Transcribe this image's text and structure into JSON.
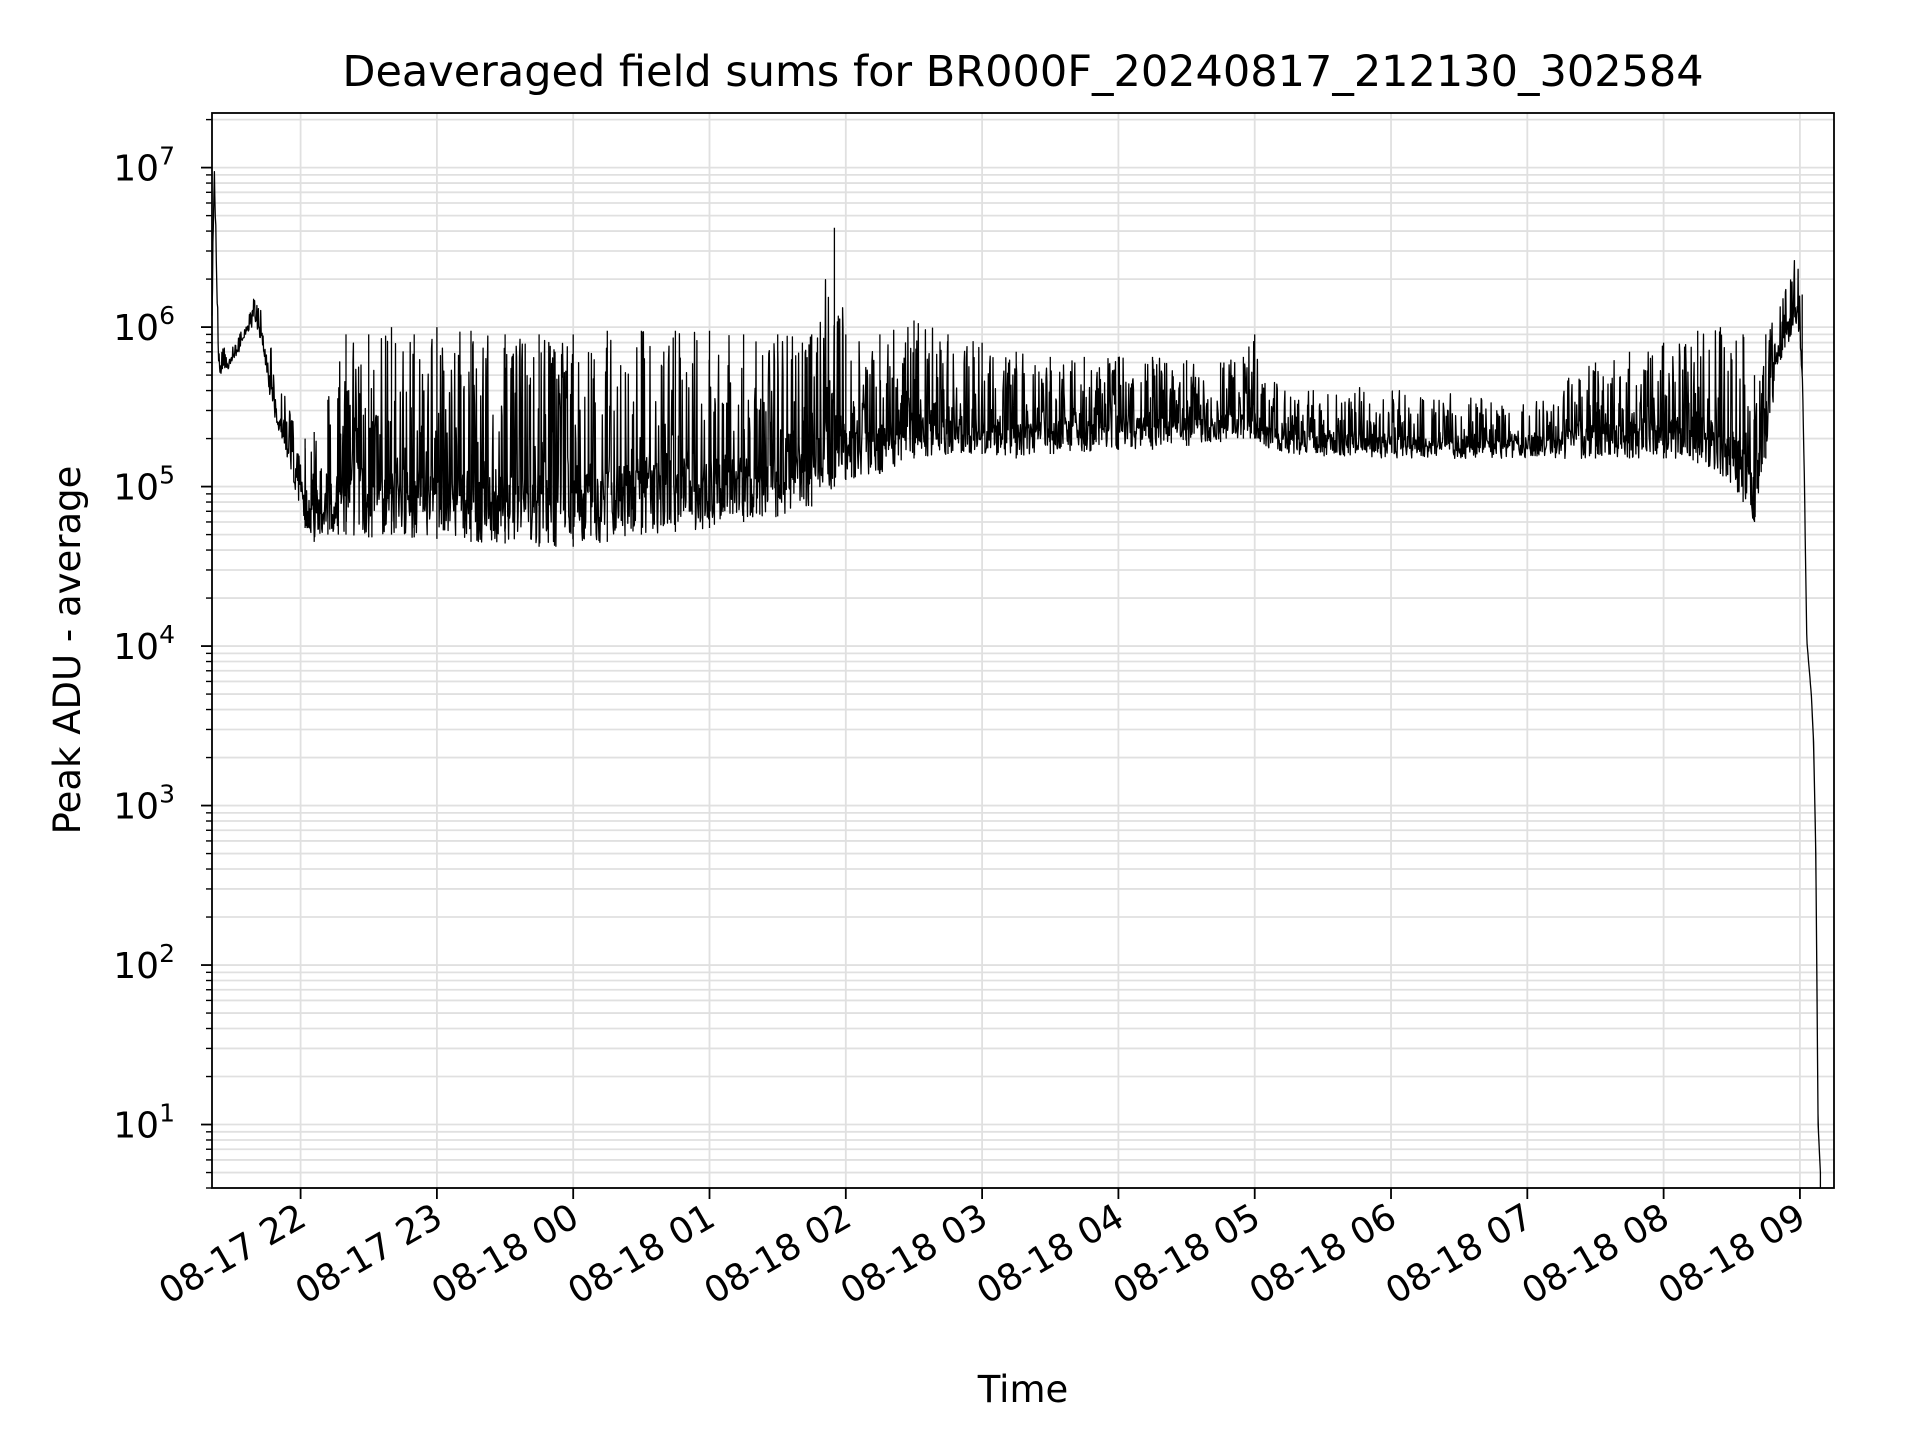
{
  "chart_data": {
    "type": "line",
    "title": "Deaveraged field sums for BR000F_20240817_212130_302584",
    "xlabel": "Time",
    "ylabel": "Peak ADU - average",
    "yscale": "log",
    "ylim": [
      4,
      22000000
    ],
    "xlim": [
      "2024-08-17 21:21",
      "2024-08-18 09:15"
    ],
    "grid": true,
    "line_color": "#000000",
    "grid_color": "#e0e0e0",
    "y_ticks": [
      {
        "value": 10,
        "base": "10",
        "exp": "1"
      },
      {
        "value": 100,
        "base": "10",
        "exp": "2"
      },
      {
        "value": 1000,
        "base": "10",
        "exp": "3"
      },
      {
        "value": 10000,
        "base": "10",
        "exp": "4"
      },
      {
        "value": 100000,
        "base": "10",
        "exp": "5"
      },
      {
        "value": 1000000,
        "base": "10",
        "exp": "6"
      },
      {
        "value": 10000000,
        "base": "10",
        "exp": "7"
      }
    ],
    "x_ticks": [
      {
        "time": "2024-08-17 22:00",
        "label": "08-17 22"
      },
      {
        "time": "2024-08-17 23:00",
        "label": "08-17 23"
      },
      {
        "time": "2024-08-18 00:00",
        "label": "08-18 00"
      },
      {
        "time": "2024-08-18 01:00",
        "label": "08-18 01"
      },
      {
        "time": "2024-08-18 02:00",
        "label": "08-18 02"
      },
      {
        "time": "2024-08-18 03:00",
        "label": "08-18 03"
      },
      {
        "time": "2024-08-18 04:00",
        "label": "08-18 04"
      },
      {
        "time": "2024-08-18 05:00",
        "label": "08-18 05"
      },
      {
        "time": "2024-08-18 06:00",
        "label": "08-18 06"
      },
      {
        "time": "2024-08-18 07:00",
        "label": "08-18 07"
      },
      {
        "time": "2024-08-18 08:00",
        "label": "08-18 08"
      },
      {
        "time": "2024-08-18 09:00",
        "label": "08-18 09"
      }
    ],
    "series": [
      {
        "x": [
          "2024-08-17 21:21",
          "2024-08-17 21:22",
          "2024-08-17 21:24",
          "2024-08-17 21:27",
          "2024-08-17 21:30",
          "2024-08-17 21:33",
          "2024-08-17 21:36",
          "2024-08-17 21:40",
          "2024-08-17 21:43",
          "2024-08-17 21:46",
          "2024-08-17 21:50",
          "2024-08-17 21:54",
          "2024-08-17 21:58",
          "2024-08-17 22:02",
          "2024-08-17 22:06",
          "2024-08-17 22:12",
          "2024-08-17 22:20",
          "2024-08-17 22:30",
          "2024-08-17 22:40",
          "2024-08-17 22:50",
          "2024-08-17 23:00",
          "2024-08-17 23:15",
          "2024-08-17 23:30",
          "2024-08-17 23:45",
          "2024-08-18 00:00",
          "2024-08-18 00:15",
          "2024-08-18 00:30",
          "2024-08-18 00:45",
          "2024-08-18 01:00",
          "2024-08-18 01:15",
          "2024-08-18 01:30",
          "2024-08-18 01:45",
          "2024-08-18 01:55",
          "2024-08-18 02:00",
          "2024-08-18 02:15",
          "2024-08-18 02:30",
          "2024-08-18 02:45",
          "2024-08-18 03:00",
          "2024-08-18 03:15",
          "2024-08-18 03:30",
          "2024-08-18 03:45",
          "2024-08-18 04:00",
          "2024-08-18 04:15",
          "2024-08-18 04:30",
          "2024-08-18 04:45",
          "2024-08-18 04:55",
          "2024-08-18 05:00",
          "2024-08-18 05:05",
          "2024-08-18 05:15",
          "2024-08-18 05:30",
          "2024-08-18 05:45",
          "2024-08-18 06:00",
          "2024-08-18 06:15",
          "2024-08-18 06:30",
          "2024-08-18 06:45",
          "2024-08-18 07:00",
          "2024-08-18 07:15",
          "2024-08-18 07:30",
          "2024-08-18 07:45",
          "2024-08-18 08:00",
          "2024-08-18 08:15",
          "2024-08-18 08:25",
          "2024-08-18 08:35",
          "2024-08-18 08:40",
          "2024-08-18 08:45",
          "2024-08-18 08:50",
          "2024-08-18 08:55",
          "2024-08-18 08:59",
          "2024-08-18 09:01",
          "2024-08-18 09:02",
          "2024-08-18 09:03",
          "2024-08-18 09:05",
          "2024-08-18 09:06",
          "2024-08-18 09:07",
          "2024-08-18 09:08",
          "2024-08-18 09:09"
        ],
        "low": [
          1100000,
          9000000,
          500000,
          520000,
          600000,
          700000,
          900000,
          1000000,
          800000,
          400000,
          220000,
          150000,
          90000,
          55000,
          45000,
          50000,
          50000,
          48000,
          50000,
          48000,
          47000,
          45000,
          44000,
          42000,
          42000,
          45000,
          50000,
          52000,
          55000,
          60000,
          65000,
          75000,
          100000,
          110000,
          120000,
          150000,
          160000,
          160000,
          150000,
          160000,
          165000,
          170000,
          170000,
          180000,
          190000,
          200000,
          200000,
          170000,
          160000,
          155000,
          150000,
          150000,
          150000,
          150000,
          150000,
          150000,
          150000,
          150000,
          150000,
          150000,
          140000,
          120000,
          80000,
          60000,
          150000,
          500000,
          800000,
          1100000,
          500000,
          100000,
          11000,
          5000,
          2500,
          500,
          10,
          5
        ],
        "high": [
          1500000,
          11000000,
          700000,
          750000,
          800000,
          900000,
          1200000,
          1600000,
          1300000,
          900000,
          450000,
          350000,
          250000,
          200000,
          220000,
          350000,
          900000,
          900000,
          1000000,
          900000,
          1000000,
          950000,
          900000,
          900000,
          900000,
          950000,
          950000,
          950000,
          950000,
          900000,
          900000,
          900000,
          4200000,
          900000,
          900000,
          1100000,
          900000,
          800000,
          700000,
          650000,
          650000,
          650000,
          650000,
          620000,
          600000,
          650000,
          900000,
          500000,
          450000,
          420000,
          420000,
          400000,
          400000,
          380000,
          380000,
          380000,
          450000,
          600000,
          700000,
          800000,
          950000,
          1000000,
          900000,
          500000,
          900000,
          1500000,
          2000000,
          3200000,
          1600000,
          100000,
          11000,
          5000,
          2500,
          500,
          10,
          5
        ]
      }
    ]
  }
}
